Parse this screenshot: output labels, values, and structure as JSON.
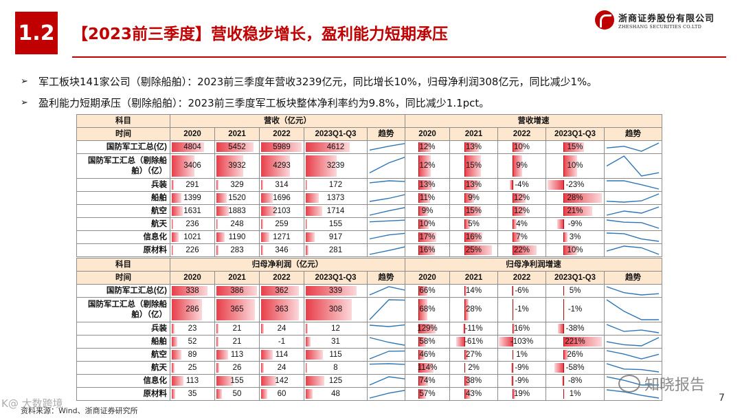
{
  "section_number": "1.2",
  "title": "【2023前三季度】营收稳步增长，盈利能力短期承压",
  "logo": {
    "cn": "浙商证券股份有限公司",
    "en": "ZHESHANG SECURITIES CO.LTD"
  },
  "bullets": [
    "军工板块141家公司（剔除船舶）：2023前三季度年营收3239亿元，同比增长10%，归母净利润308亿元，同比减少1%。",
    "盈利能力短期承压（剔除船舶）：2023前三季度军工板块整体净利率约为9.8%，同比减少1.1pct。"
  ],
  "tables": [
    {
      "row_header_1": "科目",
      "row_header_2": "时间",
      "group_left": "营收（亿元）",
      "group_right": "营收增速",
      "columns_left": [
        "2020",
        "2021",
        "2022",
        "2023Q1-Q3",
        "趋势"
      ],
      "columns_right": [
        "2020",
        "2021",
        "2022",
        "2023Q1-Q3",
        "趋势"
      ],
      "rows": [
        {
          "label": "国防军工汇总(亿)",
          "values": [
            4804,
            5452,
            5989,
            4612
          ],
          "growth": [
            12,
            13,
            10,
            15
          ]
        },
        {
          "label": "国防军工汇总（剔除船舶）（亿）",
          "values": [
            3406,
            3932,
            4293,
            3239
          ],
          "growth": [
            12,
            15,
            9,
            10
          ]
        },
        {
          "label": "兵装",
          "values": [
            291,
            329,
            314,
            172
          ],
          "growth": [
            13,
            13,
            -4,
            -23
          ]
        },
        {
          "label": "船舶",
          "values": [
            1399,
            1520,
            1696,
            1373
          ],
          "growth": [
            11,
            9,
            12,
            28
          ]
        },
        {
          "label": "航空",
          "values": [
            1631,
            1883,
            2103,
            1714
          ],
          "growth": [
            9,
            15,
            12,
            21
          ]
        },
        {
          "label": "航天",
          "values": [
            236,
            248,
            259,
            155
          ],
          "growth": [
            10,
            5,
            4,
            -9
          ]
        },
        {
          "label": "信息化",
          "values": [
            1021,
            1190,
            1271,
            917
          ],
          "growth": [
            17,
            16,
            7,
            3
          ]
        },
        {
          "label": "原材料",
          "values": [
            226,
            283,
            346,
            281
          ],
          "growth": [
            16,
            25,
            22,
            10
          ]
        }
      ]
    },
    {
      "row_header_1": "科目",
      "row_header_2": "时间",
      "group_left": "归母净利润（亿元）",
      "group_right": "归母净利润增速",
      "columns_left": [
        "2020",
        "2021",
        "2022",
        "2023Q1-Q3",
        "趋势"
      ],
      "columns_right": [
        "2020",
        "2021",
        "2022",
        "2023Q1-Q3",
        "趋势"
      ],
      "rows": [
        {
          "label": "国防军工汇总(亿)",
          "values": [
            338,
            386,
            362,
            339
          ],
          "growth": [
            66,
            14,
            -6,
            5
          ]
        },
        {
          "label": "国防军工汇总（剔除船舶）（亿）",
          "values": [
            286,
            365,
            363,
            308
          ],
          "growth": [
            68,
            28,
            -1,
            -1
          ]
        },
        {
          "label": "兵装",
          "values": [
            23,
            21,
            24,
            12
          ],
          "growth": [
            129,
            -11,
            16,
            -38
          ]
        },
        {
          "label": "船舶",
          "values": [
            52,
            21,
            -1,
            31
          ],
          "growth": [
            58,
            -61,
            -103,
            221
          ]
        },
        {
          "label": "航空",
          "values": [
            89,
            113,
            114,
            115
          ],
          "growth": [
            46,
            27,
            1,
            26
          ]
        },
        {
          "label": "航天",
          "values": [
            25,
            26,
            24,
            8
          ],
          "growth": [
            114,
            2,
            -9,
            -58
          ]
        },
        {
          "label": "信息化",
          "values": [
            113,
            155,
            142,
            125
          ],
          "growth": [
            74,
            38,
            -9,
            -8
          ]
        },
        {
          "label": "原材料",
          "values": [
            35,
            50,
            60,
            48
          ],
          "growth": [
            57,
            43,
            19,
            1
          ]
        }
      ]
    }
  ],
  "source": "资料来源：Wind、浙商证券研究所",
  "page_number": "7",
  "watermark_left": "K@ 大数跨境",
  "watermark_right": "知晓报告",
  "colors": {
    "accent": "#c00000",
    "header_fill": "#fde7cf",
    "bar": "#e83e49",
    "sparkline": "#2e75b6"
  }
}
